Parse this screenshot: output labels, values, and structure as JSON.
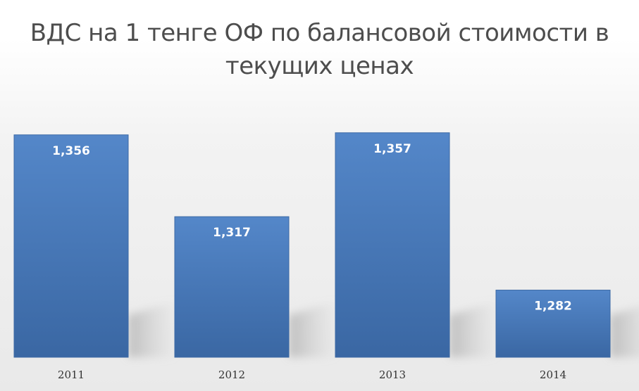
{
  "chart_data": {
    "type": "bar",
    "title": "ВДС на 1 тенге ОФ по балансовой стоимости в текущих ценах",
    "title_lines": [
      "ВДС на 1 тенге ОФ по балансовой стоимости в",
      "текущих ценах"
    ],
    "categories": [
      "2011",
      "2012",
      "2013",
      "2014"
    ],
    "values": [
      1.356,
      1.317,
      1.357,
      1.282
    ],
    "data_labels": [
      "1,356",
      "1,317",
      "1,357",
      "1,282"
    ],
    "xlabel": "",
    "ylabel": "",
    "ylim": [
      1.25,
      1.37
    ],
    "grid": false,
    "legend": "none",
    "colors": {
      "bar_top": "#5487c9",
      "bar_bottom": "#3a67a3",
      "bar_edge": "#3c69a5",
      "data_label": "#ffffff",
      "tick_label": "#333333",
      "title": "#4d4d4d"
    }
  }
}
